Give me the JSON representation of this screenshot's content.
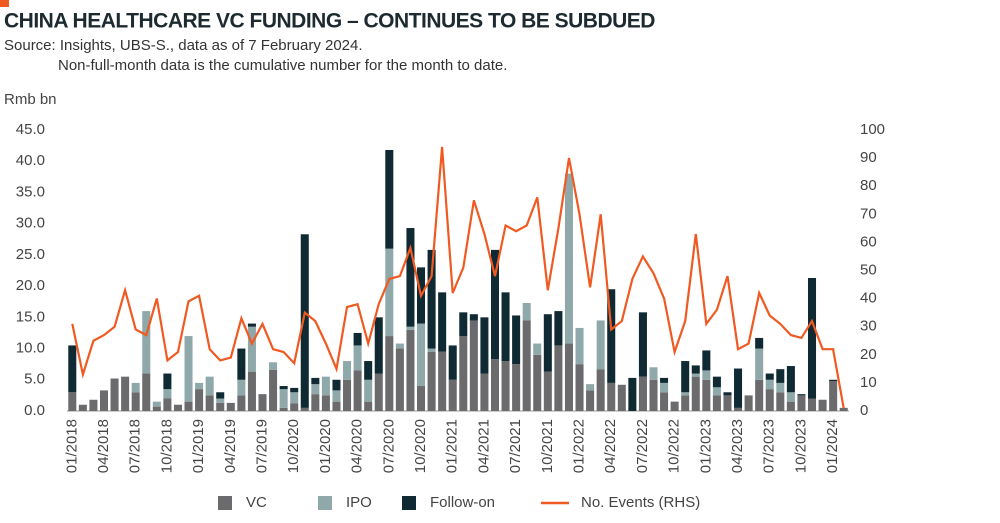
{
  "chart_data": {
    "type": "bar",
    "title": "CHINA HEALTHCARE VC FUNDING – CONTINUES TO BE SUBDUED",
    "source": "Source: Insights, UBS-S., data as of 7 February 2024.",
    "note": "Non-full-month data is the cumulative number for the month to date.",
    "y_label": "Rmb bn",
    "stacked": true,
    "categories": [
      "01/2018",
      null,
      null,
      "04/2018",
      null,
      null,
      "07/2018",
      null,
      null,
      "10/2018",
      null,
      null,
      "01/2019",
      null,
      null,
      "04/2019",
      null,
      null,
      "07/2019",
      null,
      null,
      "10/2020",
      null,
      null,
      "01/2020",
      null,
      null,
      "04/2020",
      null,
      null,
      "07/2020",
      null,
      null,
      "10/2020",
      null,
      null,
      "01/2021",
      null,
      null,
      "04/2021",
      null,
      null,
      "07/2021",
      null,
      null,
      "10/2021",
      null,
      null,
      "01/2022",
      null,
      null,
      "04/2022",
      null,
      null,
      "07/2022",
      null,
      null,
      "10/2022",
      null,
      null,
      "01/2023",
      null,
      null,
      "04/2023",
      null,
      null,
      "07/2023",
      null,
      null,
      "10/2023",
      null,
      null,
      "01/2024",
      null
    ],
    "series": [
      {
        "name": "VC",
        "type": "bar",
        "color": "#6b6b6d",
        "values": [
          3,
          1,
          1.8,
          3.3,
          5.2,
          5.5,
          3,
          6,
          0.7,
          2,
          1,
          1.5,
          3.5,
          2.5,
          1.3,
          1.3,
          2.5,
          6.3,
          2.7,
          6.6,
          0.5,
          1.2,
          0.5,
          2.7,
          2.5,
          1.5,
          5,
          6.5,
          1.5,
          6,
          12,
          10,
          13,
          4,
          9.5,
          9.5,
          5,
          12,
          14.5,
          6,
          8.3,
          8,
          7.5,
          14.5,
          9,
          6.3,
          10.5,
          10.8,
          7.5,
          3.3,
          6.7,
          4.5,
          4.2,
          0,
          5.5,
          5,
          3,
          1.5,
          2.5,
          5.5,
          5,
          2.5,
          2.5,
          0.5,
          2.5,
          5,
          3.5,
          3,
          1.5,
          2.5,
          2,
          1.8,
          4.8,
          0.5
        ]
      },
      {
        "name": "IPO",
        "type": "bar",
        "color": "#8fa8aa",
        "values": [
          0,
          0,
          0,
          0,
          0,
          0,
          1.5,
          10,
          0.8,
          1.5,
          0,
          10.5,
          1,
          3,
          0.7,
          0,
          2.5,
          7.2,
          0,
          1.2,
          3,
          1.8,
          0,
          1.6,
          3,
          1.8,
          3,
          4,
          3.5,
          0,
          14,
          0.8,
          0.5,
          10,
          0.5,
          0,
          0,
          0,
          0,
          0,
          0,
          0,
          0,
          2.8,
          1.8,
          0,
          0,
          27.2,
          5.8,
          1,
          7.8,
          0,
          0,
          0,
          0,
          2,
          1.5,
          0,
          0.5,
          0.5,
          1.5,
          1.3,
          0,
          0,
          0,
          5,
          1.5,
          1.5,
          1.5,
          0,
          0,
          0,
          0,
          0
        ]
      },
      {
        "name": "Follow-on",
        "type": "bar",
        "color": "#0f2a32",
        "values": [
          7.5,
          0,
          0,
          0,
          0,
          0,
          0,
          0,
          0,
          2.5,
          0,
          0,
          0,
          0,
          1,
          0,
          5,
          0.5,
          0,
          0,
          0.5,
          0.7,
          27.8,
          1,
          0,
          1.7,
          0,
          2,
          3,
          9,
          15.8,
          0,
          15.8,
          9,
          15.8,
          9.5,
          5.5,
          3.8,
          1,
          9,
          17.5,
          11,
          7.8,
          0,
          0,
          9.2,
          5.5,
          0,
          0,
          0,
          0,
          15,
          0,
          5.3,
          10.3,
          0,
          0.8,
          0,
          5,
          1.3,
          3.2,
          1.7,
          0.5,
          6.3,
          0,
          1.7,
          1,
          2.2,
          4.2,
          0.2,
          19.3,
          0,
          0.2,
          0
        ]
      },
      {
        "name": "No. Events (RHS)",
        "type": "line",
        "axis": "y2",
        "color": "#f05a22",
        "values": [
          31,
          13,
          25,
          27,
          30,
          43,
          29,
          27,
          40,
          18,
          21,
          39,
          41,
          22,
          18,
          19,
          33,
          24,
          31,
          22,
          21,
          17,
          35,
          32,
          24,
          15,
          37,
          38,
          24,
          38,
          47,
          48,
          58,
          41,
          48,
          94,
          42,
          51,
          75,
          63,
          48,
          66,
          64,
          66,
          76,
          43,
          65,
          90,
          70,
          44,
          70,
          29,
          32,
          47,
          55,
          49,
          40,
          21,
          32,
          63,
          31,
          36,
          48,
          22,
          24,
          42,
          34,
          31,
          27,
          26,
          32,
          22,
          22,
          1
        ]
      }
    ],
    "ylim": [
      0,
      45
    ],
    "yticks": [
      {
        "value": 0,
        "label": "0.0"
      },
      {
        "value": 5,
        "label": "5.0"
      },
      {
        "value": 10,
        "label": "10.0"
      },
      {
        "value": 15,
        "label": "15.0"
      },
      {
        "value": 20,
        "label": "20.0"
      },
      {
        "value": 25,
        "label": "25.0"
      },
      {
        "value": 30,
        "label": "30.0"
      },
      {
        "value": 35,
        "label": "35.0"
      },
      {
        "value": 40,
        "label": "40.0"
      },
      {
        "value": 45,
        "label": "45.0"
      }
    ],
    "y2lim": [
      0,
      100
    ],
    "y2ticks": [
      0,
      10,
      20,
      30,
      40,
      50,
      60,
      70,
      80,
      90,
      100
    ],
    "legend": "bottom"
  }
}
